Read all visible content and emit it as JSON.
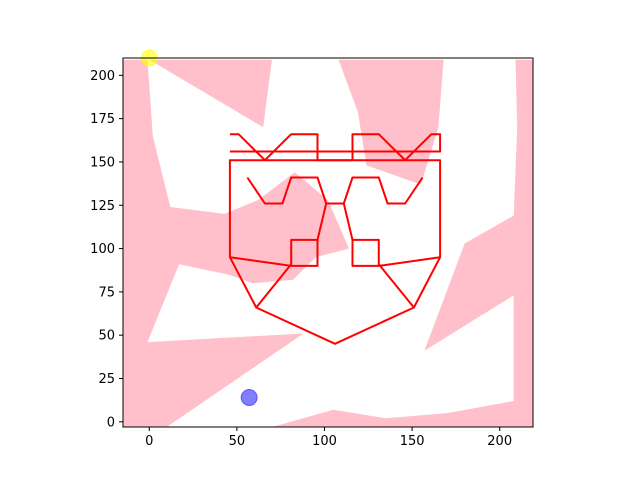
{
  "chart_data": {
    "type": "scatter",
    "title": "",
    "xlabel": "",
    "ylabel": "",
    "xlim": [
      -15,
      219
    ],
    "ylim": [
      210,
      -3
    ],
    "y_inverted": true,
    "grid": false,
    "xticks": [
      0,
      50,
      100,
      150,
      200
    ],
    "yticks": [
      0,
      25,
      50,
      75,
      100,
      125,
      150,
      175,
      200
    ],
    "background_polygons": [
      {
        "name": "pink-region-1",
        "color": "#ffc0cb",
        "points": [
          [
            -15,
            -3
          ],
          [
            10,
            -3
          ],
          [
            88,
            51
          ],
          [
            -1,
            46
          ],
          [
            17,
            91
          ],
          [
            45,
            85
          ],
          [
            59,
            80
          ],
          [
            82,
            82
          ],
          [
            95,
            95
          ],
          [
            114,
            100
          ],
          [
            102,
            128
          ],
          [
            83,
            144
          ],
          [
            62,
            128
          ],
          [
            43,
            120
          ],
          [
            12,
            124
          ],
          [
            2,
            165
          ],
          [
            -1,
            209
          ],
          [
            -15,
            209
          ]
        ]
      },
      {
        "name": "pink-region-2",
        "color": "#ffc0cb",
        "points": [
          [
            70,
            -3
          ],
          [
            219,
            -3
          ],
          [
            219,
            209
          ],
          [
            209,
            209
          ],
          [
            210,
            170
          ],
          [
            208,
            119
          ],
          [
            180,
            103
          ],
          [
            157,
            41
          ],
          [
            208,
            73
          ],
          [
            208,
            12
          ],
          [
            170,
            5
          ],
          [
            135,
            2
          ],
          [
            105,
            7
          ]
        ]
      },
      {
        "name": "pink-region-3",
        "color": "#ffc0cb",
        "points": [
          [
            0,
            209
          ],
          [
            65,
            170
          ],
          [
            70,
            209
          ]
        ]
      },
      {
        "name": "pink-region-4",
        "color": "#ffc0cb",
        "points": [
          [
            108,
            209
          ],
          [
            119,
            179
          ],
          [
            124,
            148
          ],
          [
            155,
            137
          ],
          [
            165,
            170
          ],
          [
            168,
            209
          ]
        ]
      }
    ],
    "drawing_paths": [
      {
        "name": "house-outline",
        "color": "#ff0000",
        "closed": false,
        "points": [
          [
            46,
            95
          ],
          [
            46,
            151
          ],
          [
            166,
            151
          ],
          [
            166,
            95
          ],
          [
            151,
            66
          ],
          [
            106,
            45
          ],
          [
            61,
            66
          ],
          [
            46,
            95
          ]
        ]
      },
      {
        "name": "roof-left",
        "color": "#ff0000",
        "closed": false,
        "points": [
          [
            61,
            66
          ],
          [
            81,
            91
          ]
        ]
      },
      {
        "name": "roof-right",
        "color": "#ff0000",
        "closed": false,
        "points": [
          [
            151,
            66
          ],
          [
            131,
            91
          ]
        ]
      },
      {
        "name": "eye-left",
        "color": "#ff0000",
        "closed": false,
        "points": [
          [
            46,
            95
          ],
          [
            81,
            90
          ],
          [
            96,
            90
          ],
          [
            96,
            105
          ],
          [
            81,
            105
          ],
          [
            81,
            90
          ]
        ]
      },
      {
        "name": "eye-right",
        "color": "#ff0000",
        "closed": false,
        "points": [
          [
            166,
            95
          ],
          [
            131,
            90
          ],
          [
            116,
            90
          ],
          [
            116,
            105
          ],
          [
            131,
            105
          ],
          [
            131,
            90
          ]
        ]
      },
      {
        "name": "nose",
        "color": "#ff0000",
        "closed": false,
        "points": [
          [
            96,
            105
          ],
          [
            101,
            126
          ],
          [
            111,
            126
          ],
          [
            116,
            105
          ]
        ]
      },
      {
        "name": "mouth",
        "color": "#ff0000",
        "closed": false,
        "points": [
          [
            56,
            141
          ],
          [
            66,
            126
          ],
          [
            76,
            126
          ],
          [
            81,
            141
          ],
          [
            96,
            141
          ],
          [
            101,
            126
          ],
          [
            111,
            126
          ],
          [
            116,
            141
          ],
          [
            131,
            141
          ],
          [
            136,
            126
          ],
          [
            146,
            126
          ],
          [
            156,
            141
          ]
        ]
      },
      {
        "name": "base-pattern",
        "color": "#ff0000",
        "closed": false,
        "points": [
          [
            46,
            156
          ],
          [
            166,
            156
          ],
          [
            166,
            166
          ],
          [
            161,
            166
          ],
          [
            146,
            151
          ],
          [
            131,
            166
          ],
          [
            116,
            166
          ],
          [
            116,
            151
          ],
          [
            96,
            151
          ],
          [
            96,
            166
          ],
          [
            81,
            166
          ],
          [
            66,
            151
          ],
          [
            51,
            166
          ],
          [
            46,
            166
          ]
        ]
      }
    ],
    "markers": [
      {
        "name": "start-marker",
        "x": 57,
        "y": 14,
        "color": "#0000ff",
        "alpha": 0.5,
        "radius": 8
      },
      {
        "name": "goal-marker",
        "x": 0,
        "y": 210,
        "color": "#ffff00",
        "alpha": 0.6,
        "radius": 8
      }
    ]
  }
}
